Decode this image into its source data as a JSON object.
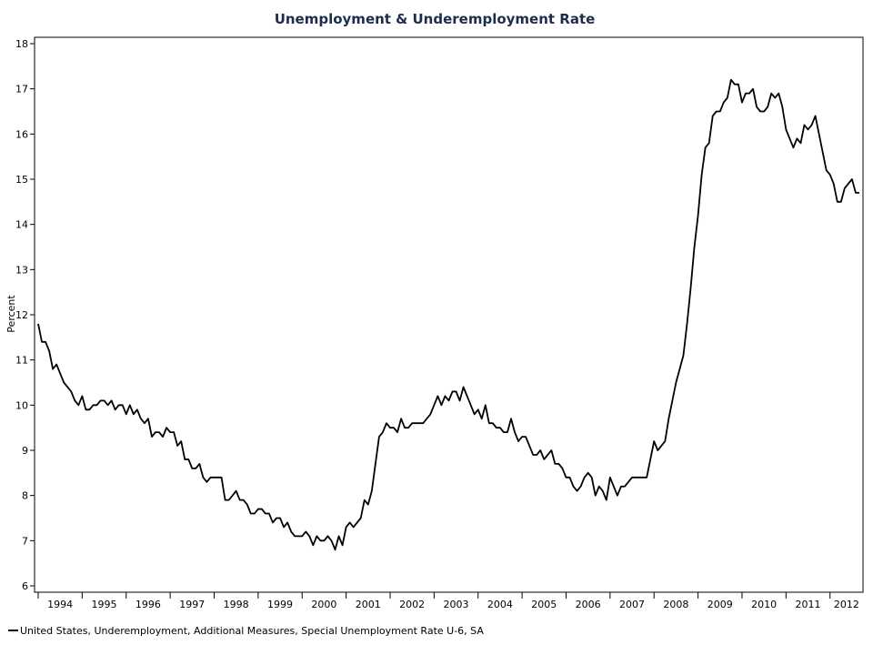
{
  "colors": {
    "title": "#1f2d4d",
    "line": "#000000",
    "axis": "#000000"
  },
  "chart_data": {
    "type": "line",
    "title": "Unemployment & Underemployment Rate",
    "ylabel": "Percent",
    "xlabel": "",
    "ylim": [
      6,
      18
    ],
    "yticks": [
      6,
      7,
      8,
      9,
      10,
      11,
      12,
      13,
      14,
      15,
      16,
      17,
      18
    ],
    "xlim": [
      1994.0,
      2012.75
    ],
    "xticks": [
      "1994",
      "1995",
      "1996",
      "1997",
      "1998",
      "1999",
      "2000",
      "2001",
      "2002",
      "2003",
      "2004",
      "2005",
      "2006",
      "2007",
      "2008",
      "2009",
      "2010",
      "2011",
      "2012"
    ],
    "grid": false,
    "legend_position": "bottom-left",
    "series": [
      {
        "name": "United States, Underemployment, Additional Measures, Special Unemployment Rate U-6, SA",
        "start_year": 1994,
        "frequency": "monthly",
        "values": [
          11.8,
          11.4,
          11.4,
          11.2,
          10.8,
          10.9,
          10.7,
          10.5,
          10.4,
          10.3,
          10.1,
          10.0,
          10.2,
          9.9,
          9.9,
          10.0,
          10.0,
          10.1,
          10.1,
          10.0,
          10.1,
          9.9,
          10.0,
          10.0,
          9.8,
          10.0,
          9.8,
          9.9,
          9.7,
          9.6,
          9.7,
          9.3,
          9.4,
          9.4,
          9.3,
          9.5,
          9.4,
          9.4,
          9.1,
          9.2,
          8.8,
          8.8,
          8.6,
          8.6,
          8.7,
          8.4,
          8.3,
          8.4,
          8.4,
          8.4,
          8.4,
          7.9,
          7.9,
          8.0,
          8.1,
          7.9,
          7.9,
          7.8,
          7.6,
          7.6,
          7.7,
          7.7,
          7.6,
          7.6,
          7.4,
          7.5,
          7.5,
          7.3,
          7.4,
          7.2,
          7.1,
          7.1,
          7.1,
          7.2,
          7.1,
          6.9,
          7.1,
          7.0,
          7.0,
          7.1,
          7.0,
          6.8,
          7.1,
          6.9,
          7.3,
          7.4,
          7.3,
          7.4,
          7.5,
          7.9,
          7.8,
          8.1,
          8.7,
          9.3,
          9.4,
          9.6,
          9.5,
          9.5,
          9.4,
          9.7,
          9.5,
          9.5,
          9.6,
          9.6,
          9.6,
          9.6,
          9.7,
          9.8,
          10.0,
          10.2,
          10.0,
          10.2,
          10.1,
          10.3,
          10.3,
          10.1,
          10.4,
          10.2,
          10.0,
          9.8,
          9.9,
          9.7,
          10.0,
          9.6,
          9.6,
          9.5,
          9.5,
          9.4,
          9.4,
          9.7,
          9.4,
          9.2,
          9.3,
          9.3,
          9.1,
          8.9,
          8.9,
          9.0,
          8.8,
          8.9,
          9.0,
          8.7,
          8.7,
          8.6,
          8.4,
          8.4,
          8.2,
          8.1,
          8.2,
          8.4,
          8.5,
          8.4,
          8.0,
          8.2,
          8.1,
          7.9,
          8.4,
          8.2,
          8.0,
          8.2,
          8.2,
          8.3,
          8.4,
          8.4,
          8.4,
          8.4,
          8.4,
          8.8,
          9.2,
          9.0,
          9.1,
          9.2,
          9.7,
          10.1,
          10.5,
          10.8,
          11.1,
          11.8,
          12.6,
          13.5,
          14.2,
          15.1,
          15.7,
          15.8,
          16.4,
          16.5,
          16.5,
          16.7,
          16.8,
          17.2,
          17.1,
          17.1,
          16.7,
          16.9,
          16.9,
          17.0,
          16.6,
          16.5,
          16.5,
          16.6,
          16.9,
          16.8,
          16.9,
          16.6,
          16.1,
          15.9,
          15.7,
          15.9,
          15.8,
          16.2,
          16.1,
          16.2,
          16.4,
          16.0,
          15.6,
          15.2,
          15.1,
          14.9,
          14.5,
          14.5,
          14.8,
          14.9,
          15.0,
          14.7,
          14.7
        ]
      }
    ]
  }
}
